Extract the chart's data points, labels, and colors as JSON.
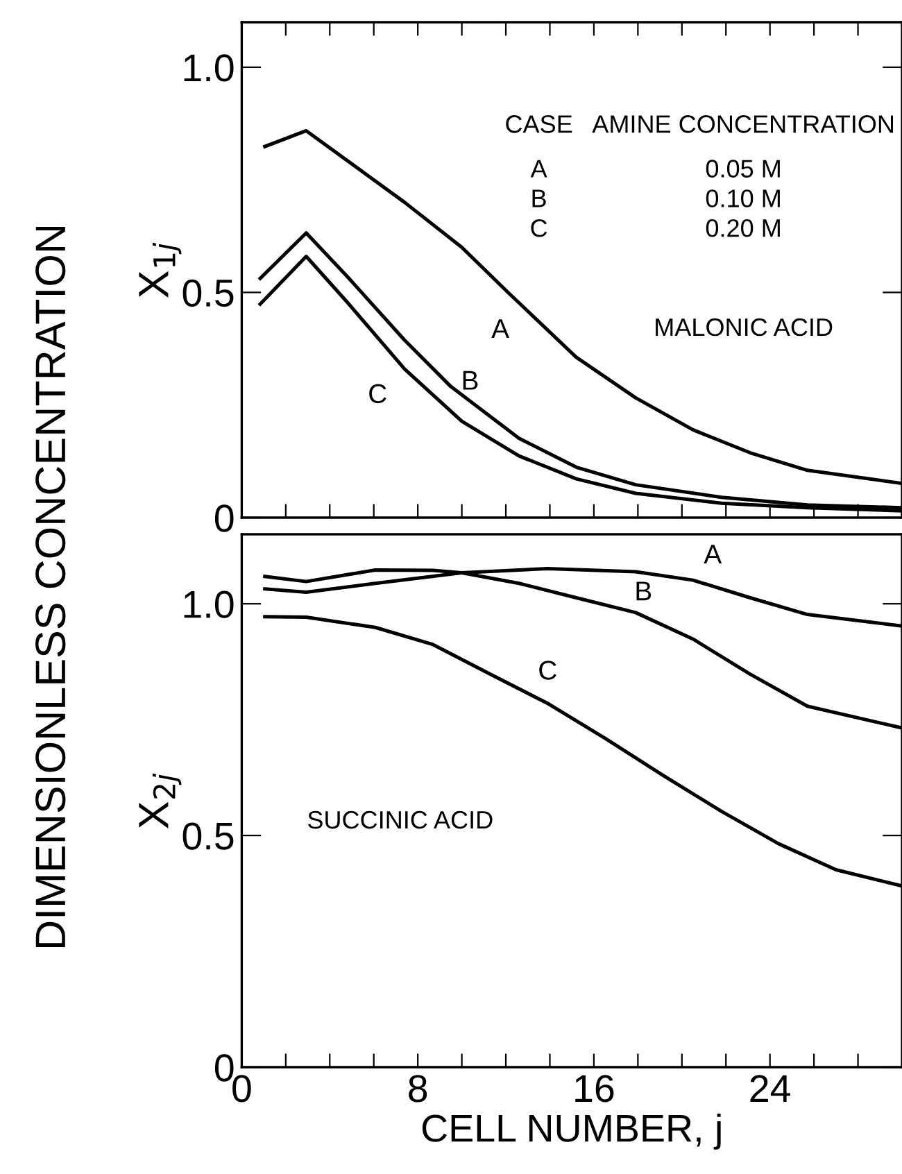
{
  "chart_data": [
    {
      "type": "line",
      "ylabel": "X$_{1j}$",
      "xlim": [
        0,
        30
      ],
      "ylim": [
        0,
        1.1
      ],
      "xticks": [
        0,
        {
          "value": 2,
          "label": null
        },
        {
          "value": 4,
          "label": null
        },
        {
          "value": 6,
          "label": null
        },
        8,
        {
          "value": 10,
          "label": null
        },
        {
          "value": 12,
          "label": null
        },
        {
          "value": 14,
          "label": null
        },
        16,
        {
          "value": 18,
          "label": null
        },
        {
          "value": 20,
          "label": null
        },
        {
          "value": 22,
          "label": null
        },
        24,
        {
          "value": 26,
          "label": null
        },
        {
          "value": 28,
          "label": null
        }
      ],
      "yticks": [
        0,
        0.5,
        {
          "value": 1,
          "label": "1.0"
        }
      ],
      "tick_labels": "y",
      "grid": false,
      "legend": false,
      "annotations": [
        "CASE",
        "AMINE CONCENTRATION",
        "A",
        "B",
        "C",
        "0.05 M",
        "0.10 M",
        "0.20 M",
        "MALONIC ACID"
      ],
      "series": [
        {
          "name": "A",
          "color": "#000000",
          "x": [
            1.05,
            2.93,
            7.4,
            10.0,
            12.1,
            15.2,
            17.9,
            20.5,
            23.1,
            25.7,
            30.0
          ],
          "values": [
            0.824,
            0.859,
            0.7,
            0.6,
            0.5,
            0.356,
            0.266,
            0.195,
            0.144,
            0.105,
            0.076
          ]
        },
        {
          "name": "B",
          "color": "#000000",
          "x": [
            0.84,
            2.93,
            4.8,
            7.4,
            9.5,
            12.6,
            15.2,
            17.9,
            21.8,
            25.7,
            30.0
          ],
          "values": [
            0.531,
            0.632,
            0.535,
            0.394,
            0.291,
            0.176,
            0.112,
            0.073,
            0.045,
            0.028,
            0.022
          ]
        },
        {
          "name": "C",
          "color": "#000000",
          "x": [
            0.84,
            2.93,
            4.8,
            7.4,
            10.0,
            12.6,
            15.2,
            17.9,
            21.8,
            25.7,
            30.0
          ],
          "values": [
            0.474,
            0.58,
            0.478,
            0.33,
            0.214,
            0.137,
            0.086,
            0.054,
            0.032,
            0.022,
            0.015
          ]
        }
      ]
    },
    {
      "type": "line",
      "xlabel": "CELL NUMBER, j",
      "ylabel": "X$_{2j}$",
      "xlim": [
        0,
        30
      ],
      "ylim": [
        0,
        1.15
      ],
      "xticks": [
        0,
        {
          "value": 2,
          "label": null
        },
        {
          "value": 4,
          "label": null
        },
        {
          "value": 6,
          "label": null
        },
        8,
        {
          "value": 10,
          "label": null
        },
        {
          "value": 12,
          "label": null
        },
        {
          "value": 14,
          "label": null
        },
        16,
        {
          "value": 18,
          "label": null
        },
        {
          "value": 20,
          "label": null
        },
        {
          "value": 22,
          "label": null
        },
        24,
        {
          "value": 26,
          "label": null
        },
        {
          "value": 28,
          "label": null
        }
      ],
      "yticks": [
        0,
        0.5,
        {
          "value": 1,
          "label": "1.0"
        }
      ],
      "grid": false,
      "legend": false,
      "annotations": [
        "SUCCINIC ACID",
        "DIMENSIONLESS CONCENTRATION"
      ],
      "series": [
        {
          "name": "A",
          "color": "#000000",
          "x": [
            1.05,
            2.93,
            6.07,
            10.0,
            13.9,
            17.9,
            20.5,
            23.1,
            25.7,
            30.0
          ],
          "values": [
            1.032,
            1.025,
            1.044,
            1.067,
            1.076,
            1.069,
            1.051,
            1.013,
            0.977,
            0.952
          ]
        },
        {
          "name": "B",
          "color": "#000000",
          "x": [
            1.05,
            2.93,
            6.07,
            8.69,
            10.0,
            12.6,
            15.2,
            17.9,
            20.5,
            23.1,
            25.7,
            30.0
          ],
          "values": [
            1.059,
            1.048,
            1.073,
            1.072,
            1.067,
            1.044,
            1.013,
            0.981,
            0.924,
            0.848,
            0.779,
            0.732
          ]
        },
        {
          "name": "C",
          "color": "#000000",
          "x": [
            1.05,
            2.93,
            6.07,
            8.69,
            11.3,
            13.9,
            16.5,
            19.2,
            21.8,
            24.4,
            27.0,
            30.0
          ],
          "values": [
            0.972,
            0.971,
            0.949,
            0.912,
            0.848,
            0.785,
            0.71,
            0.628,
            0.552,
            0.482,
            0.426,
            0.391
          ]
        }
      ]
    }
  ]
}
